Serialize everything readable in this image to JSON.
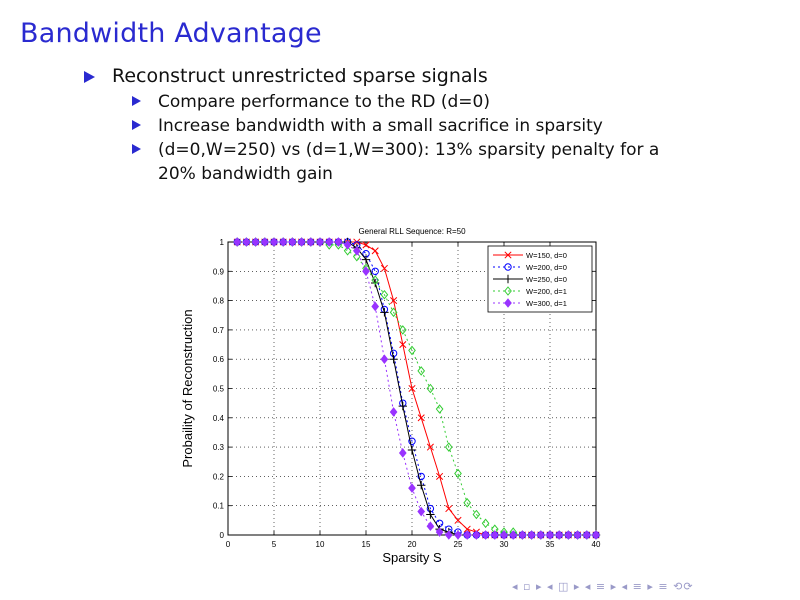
{
  "slide": {
    "title": "Bandwidth Advantage",
    "bullet_main": "Reconstruct unrestricted sparse signals",
    "sub_bullets": [
      "Compare performance to the RD (d=0)",
      "Increase bandwidth with a small sacrifice in sparsity",
      "(d=0,W=250) vs (d=1,W=300):  13% sparsity penalty for a",
      "20% bandwidth gain"
    ],
    "nav_symbols": "◂ ▫ ▸ ◂ ◫ ▸ ◂ ≡ ▸ ◂ ≡ ▸   ≡   ⟲⟳"
  },
  "chart_data": {
    "type": "line",
    "title": "General RLL Sequence: R=50",
    "xlabel": "Sparsity S",
    "ylabel": "Probaility of Reconstruction",
    "xlim": [
      0,
      40
    ],
    "ylim": [
      0,
      1
    ],
    "xticks": [
      0,
      5,
      10,
      15,
      20,
      25,
      30,
      35,
      40
    ],
    "yticks": [
      0,
      0.1,
      0.2,
      0.3,
      0.4,
      0.5,
      0.6,
      0.7,
      0.8,
      0.9,
      1
    ],
    "grid": true,
    "legend_position": "top-right",
    "series": [
      {
        "name": "W=150, d=0",
        "color": "#ff0000",
        "marker": "x",
        "dash": "",
        "x": [
          1,
          2,
          3,
          4,
          5,
          6,
          7,
          8,
          9,
          10,
          11,
          12,
          13,
          14,
          15,
          16,
          17,
          18,
          19,
          20,
          21,
          22,
          23,
          24,
          25,
          26,
          27,
          28,
          29,
          30,
          31,
          32,
          33,
          34,
          35,
          36,
          37,
          38,
          39,
          40
        ],
        "y": [
          1,
          1,
          1,
          1,
          1,
          1,
          1,
          1,
          1,
          1,
          1,
          1,
          1,
          1,
          0.99,
          0.97,
          0.91,
          0.8,
          0.65,
          0.5,
          0.4,
          0.3,
          0.2,
          0.09,
          0.05,
          0.02,
          0.01,
          0,
          0,
          0,
          0,
          0,
          0,
          0,
          0,
          0,
          0,
          0,
          0,
          0
        ]
      },
      {
        "name": "W=200, d=0",
        "color": "#0000ff",
        "marker": "o",
        "dash": "2,3",
        "x": [
          1,
          2,
          3,
          4,
          5,
          6,
          7,
          8,
          9,
          10,
          11,
          12,
          13,
          14,
          15,
          16,
          17,
          18,
          19,
          20,
          21,
          22,
          23,
          24,
          25,
          26,
          27,
          28,
          29,
          30,
          31,
          32,
          33,
          34,
          35,
          36,
          37,
          38,
          39,
          40
        ],
        "y": [
          1,
          1,
          1,
          1,
          1,
          1,
          1,
          1,
          1,
          1,
          1,
          1,
          1,
          0.99,
          0.96,
          0.9,
          0.77,
          0.62,
          0.45,
          0.32,
          0.2,
          0.09,
          0.04,
          0.02,
          0.01,
          0,
          0,
          0,
          0,
          0,
          0,
          0,
          0,
          0,
          0,
          0,
          0,
          0,
          0,
          0
        ]
      },
      {
        "name": "W=250, d=0",
        "color": "#000000",
        "marker": "+",
        "dash": "",
        "x": [
          1,
          2,
          3,
          4,
          5,
          6,
          7,
          8,
          9,
          10,
          11,
          12,
          13,
          14,
          15,
          16,
          17,
          18,
          19,
          20,
          21,
          22,
          23,
          24,
          25,
          26,
          27,
          28,
          29,
          30,
          31,
          32,
          33,
          34,
          35,
          36,
          37,
          38,
          39,
          40
        ],
        "y": [
          1,
          1,
          1,
          1,
          1,
          1,
          1,
          1,
          1,
          1,
          1,
          1,
          1,
          0.98,
          0.94,
          0.86,
          0.76,
          0.6,
          0.44,
          0.29,
          0.17,
          0.07,
          0.02,
          0.01,
          0,
          0,
          0,
          0,
          0,
          0,
          0,
          0,
          0,
          0,
          0,
          0,
          0,
          0,
          0,
          0
        ]
      },
      {
        "name": "W=200, d=1",
        "color": "#33cc33",
        "marker": "diamond-open",
        "dash": "2,3",
        "x": [
          1,
          2,
          3,
          4,
          5,
          6,
          7,
          8,
          9,
          10,
          11,
          12,
          13,
          14,
          15,
          16,
          17,
          18,
          19,
          20,
          21,
          22,
          23,
          24,
          25,
          26,
          27,
          28,
          29,
          30,
          31,
          32,
          33,
          34,
          35,
          36,
          37,
          38,
          39,
          40
        ],
        "y": [
          1,
          1,
          1,
          1,
          1,
          1,
          1,
          1,
          1,
          1,
          0.99,
          0.99,
          0.97,
          0.95,
          0.91,
          0.87,
          0.82,
          0.76,
          0.7,
          0.63,
          0.56,
          0.5,
          0.43,
          0.3,
          0.21,
          0.11,
          0.07,
          0.04,
          0.02,
          0.01,
          0.01,
          0,
          0,
          0,
          0,
          0,
          0,
          0,
          0,
          0
        ]
      },
      {
        "name": "W=300, d=1",
        "color": "#9933ff",
        "marker": "diamond-filled",
        "dash": "2,3",
        "x": [
          1,
          2,
          3,
          4,
          5,
          6,
          7,
          8,
          9,
          10,
          11,
          12,
          13,
          14,
          15,
          16,
          17,
          18,
          19,
          20,
          21,
          22,
          23,
          24,
          25,
          26,
          27,
          28,
          29,
          30,
          31,
          32,
          33,
          34,
          35,
          36,
          37,
          38,
          39,
          40
        ],
        "y": [
          1,
          1,
          1,
          1,
          1,
          1,
          1,
          1,
          1,
          1,
          1,
          1,
          0.99,
          0.97,
          0.9,
          0.78,
          0.6,
          0.42,
          0.28,
          0.16,
          0.08,
          0.03,
          0.01,
          0,
          0,
          0,
          0,
          0,
          0,
          0,
          0,
          0,
          0,
          0,
          0,
          0,
          0,
          0,
          0,
          0
        ]
      }
    ]
  }
}
